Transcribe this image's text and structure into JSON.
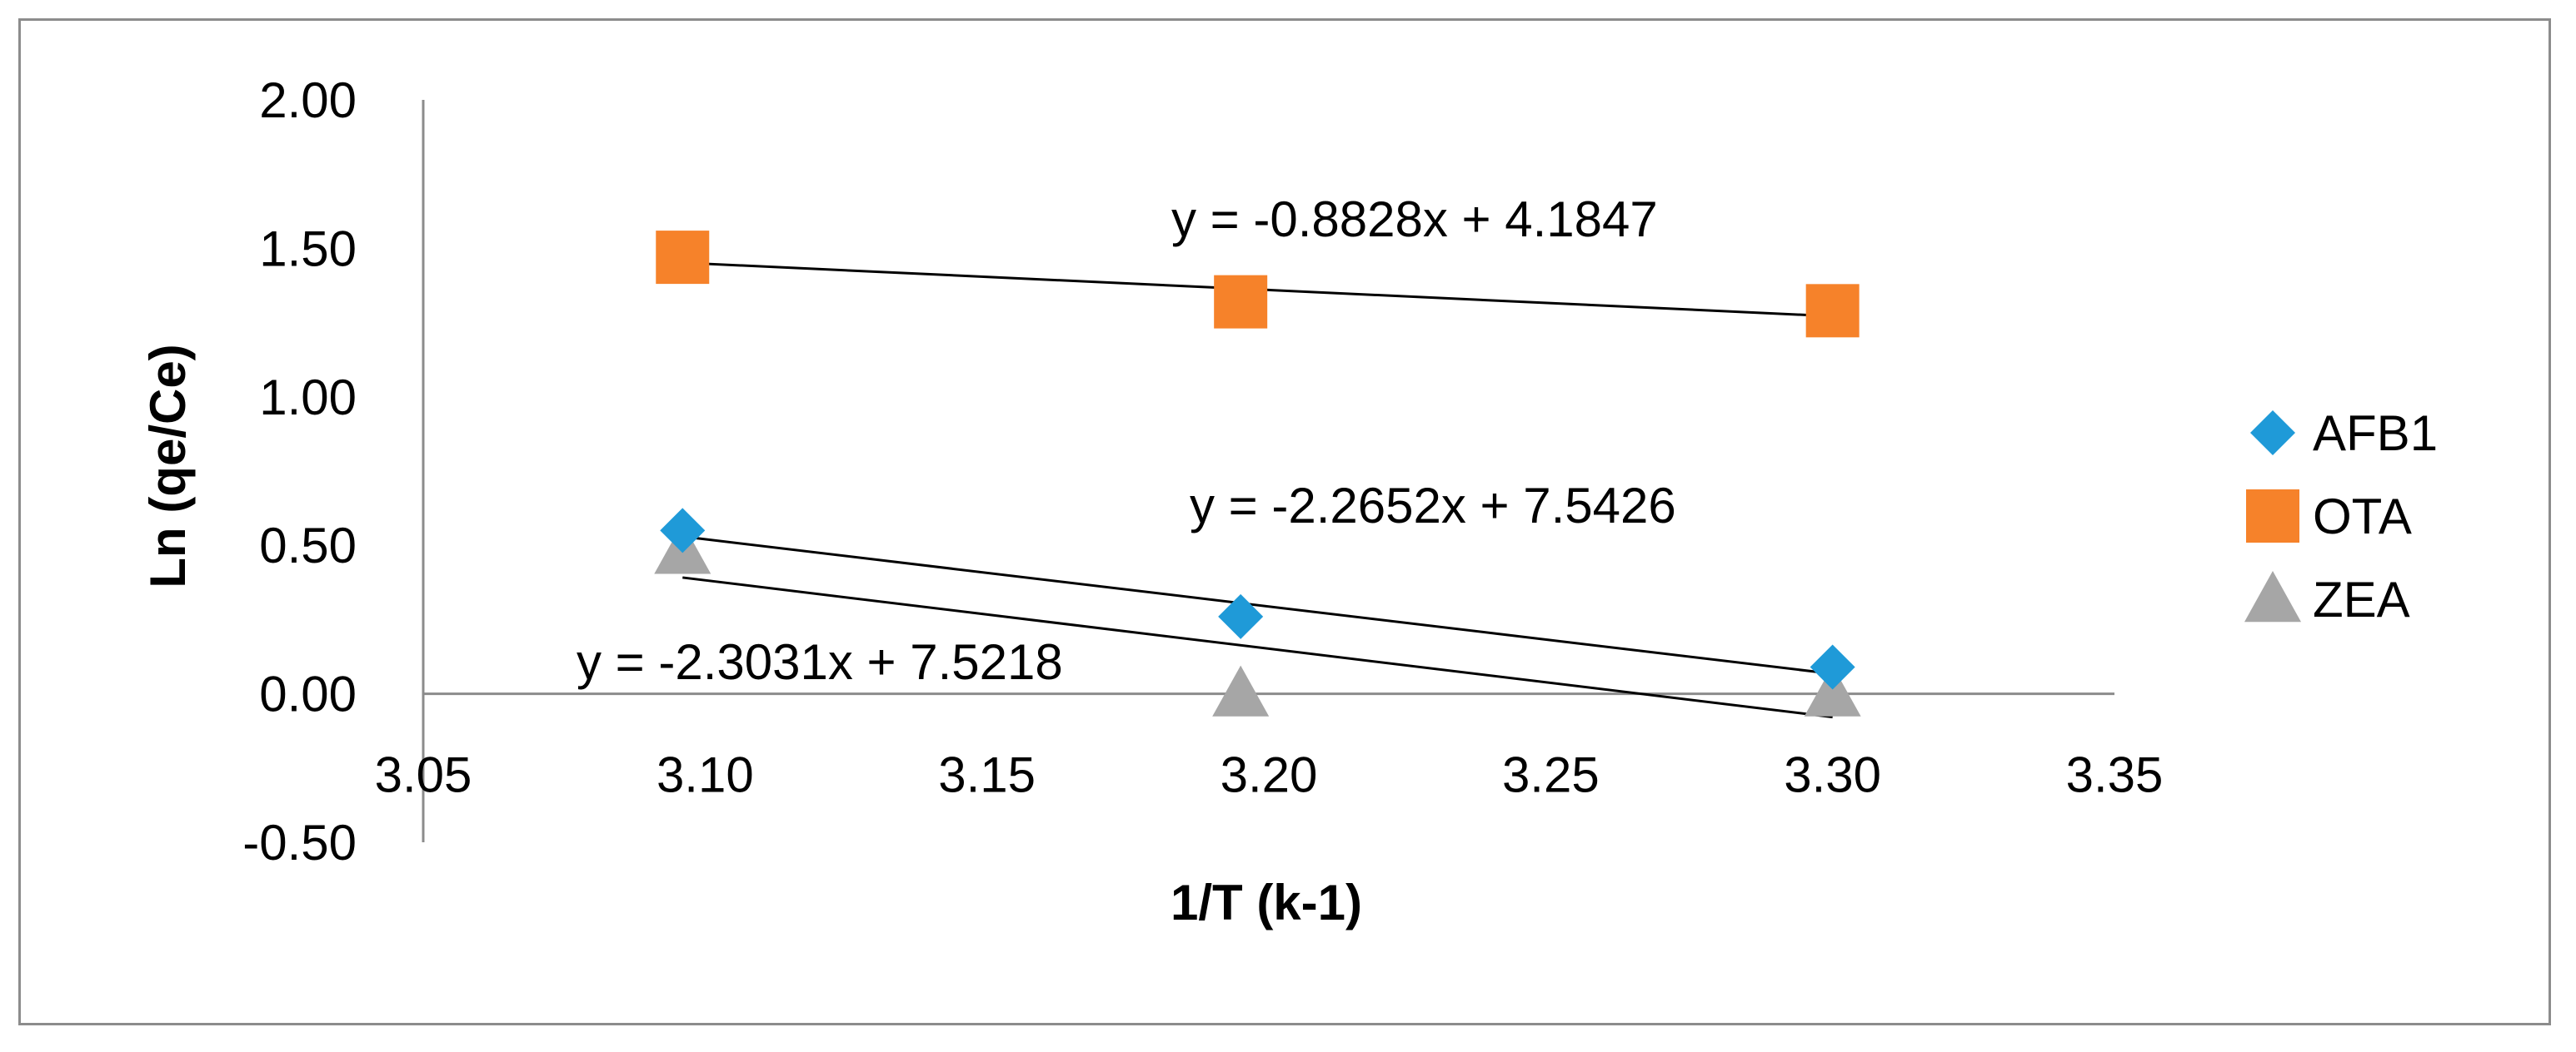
{
  "chart_data": {
    "type": "scatter",
    "title": "",
    "xlabel": "1/T (k-1)",
    "ylabel": "Ln (qe/Ce)",
    "xlim": [
      3.05,
      3.35
    ],
    "ylim": [
      -0.5,
      2.0
    ],
    "x_ticks": [
      "3.05",
      "3.10",
      "3.15",
      "3.20",
      "3.25",
      "3.30",
      "3.35"
    ],
    "y_ticks": [
      "-0.50",
      "0.00",
      "0.50",
      "1.00",
      "1.50",
      "2.00"
    ],
    "grid": false,
    "legend_position": "right",
    "trendlines": "linear",
    "series": [
      {
        "name": "AFB1",
        "marker": "diamond",
        "color": "#1f9ad8",
        "x": [
          3.096,
          3.195,
          3.3
        ],
        "y": [
          0.55,
          0.26,
          0.09
        ],
        "equation": "y = -2.2652x + 7.5426",
        "slope": -2.2652,
        "intercept": 7.5426
      },
      {
        "name": "OTA",
        "marker": "square",
        "color": "#f6822a",
        "x": [
          3.096,
          3.195,
          3.3
        ],
        "y": [
          1.47,
          1.32,
          1.29
        ],
        "equation": "y = -0.8828x + 4.1847",
        "slope": -0.8828,
        "intercept": 4.1847
      },
      {
        "name": "ZEA",
        "marker": "triangle",
        "color": "#a6a6a6",
        "x": [
          3.096,
          3.195,
          3.3
        ],
        "y": [
          0.48,
          0.0,
          0.0
        ],
        "equation": "y = -2.3031x + 7.5218",
        "slope": -2.3031,
        "intercept": 7.5218
      }
    ]
  }
}
